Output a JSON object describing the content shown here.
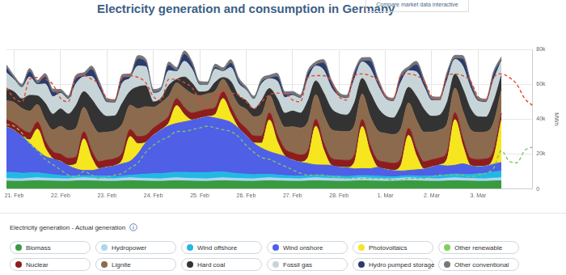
{
  "page": {
    "button": "Compare market data interactive",
    "legend_heading": "Electricity generation - Actual generation"
  },
  "chart_data": {
    "type": "area",
    "title": "Electricity generation and consumption in Germany",
    "y_label": "MWh",
    "stacked": true,
    "grid": true,
    "legend": "bottom",
    "ylim": [
      0,
      80000
    ],
    "yticks": [
      0,
      {
        "value": 20000,
        "label": "20k"
      },
      {
        "value": 40000,
        "label": "40k"
      },
      {
        "value": 60000,
        "label": "60k"
      },
      {
        "value": 80000,
        "label": "80k"
      }
    ],
    "categories": [
      null,
      "21. Feb",
      null,
      null,
      null,
      null,
      null,
      "22. Feb",
      null,
      null,
      null,
      null,
      null,
      "23. Feb",
      null,
      null,
      null,
      null,
      null,
      "24. Feb",
      null,
      null,
      null,
      null,
      null,
      "25. Feb",
      null,
      null,
      null,
      null,
      null,
      "26. Feb",
      null,
      null,
      null,
      null,
      null,
      "27. Feb",
      null,
      null,
      null,
      null,
      null,
      "28. Feb",
      null,
      null,
      null,
      null,
      null,
      "1. Mar",
      null,
      null,
      null,
      null,
      null,
      "2. Mar",
      null,
      null,
      null,
      null,
      null,
      "3. Mar",
      null,
      null,
      null,
      null,
      null,
      null,
      null
    ],
    "series": [
      {
        "name": "Biomass",
        "color": "#3a9a3f",
        "values": [
          4500,
          4400,
          4400,
          4600,
          4700,
          4600,
          4500,
          4400,
          4400,
          4600,
          4700,
          4600,
          4500,
          4400,
          4400,
          4600,
          4700,
          4600,
          4500,
          4400,
          4400,
          4600,
          4700,
          4600,
          4500,
          4400,
          4400,
          4600,
          4700,
          4600,
          4500,
          4400,
          4400,
          4600,
          4700,
          4600,
          4500,
          4400,
          4400,
          4600,
          4700,
          4600,
          4500,
          4400,
          4400,
          4600,
          4700,
          4600,
          4500,
          4400,
          4400,
          4600,
          4700,
          4600,
          4500,
          4400,
          4400,
          4600,
          4700,
          4600,
          4500,
          4400,
          4400,
          4600,
          4700,
          null,
          null,
          null,
          null
        ]
      },
      {
        "name": "Hydropower",
        "color": "#a9d7ef",
        "values": [
          1500,
          1500,
          1400,
          1600,
          1700,
          1600,
          1500,
          1500,
          1400,
          1600,
          1700,
          1600,
          1500,
          1500,
          1400,
          1600,
          1700,
          1600,
          1500,
          1500,
          1400,
          1600,
          1700,
          1600,
          1500,
          1500,
          1400,
          1600,
          1700,
          1600,
          1500,
          1500,
          1400,
          1600,
          1700,
          1600,
          1500,
          1500,
          1400,
          1600,
          1700,
          1600,
          1500,
          1500,
          1400,
          1600,
          1700,
          1600,
          1500,
          1500,
          1400,
          1600,
          1700,
          1600,
          1500,
          1500,
          1400,
          1600,
          1700,
          1600,
          1500,
          1500,
          1400,
          1600,
          1700,
          null,
          null,
          null,
          null
        ]
      },
      {
        "name": "Wind offshore",
        "color": "#22b8e3",
        "values": [
          3500,
          3500,
          3200,
          3000,
          2800,
          2500,
          2200,
          1800,
          1500,
          1300,
          1200,
          1400,
          1500,
          1500,
          1400,
          1300,
          1500,
          2000,
          2500,
          2800,
          3000,
          3000,
          3200,
          3300,
          3400,
          3500,
          3600,
          3500,
          3300,
          3000,
          2800,
          2600,
          2400,
          2200,
          2000,
          1800,
          1700,
          1600,
          1500,
          1400,
          1400,
          1500,
          1500,
          1500,
          1400,
          1300,
          1300,
          1400,
          1400,
          1300,
          1200,
          1100,
          1200,
          1300,
          1400,
          1600,
          1800,
          2000,
          2200,
          2200,
          2400,
          2800,
          3200,
          3500,
          3800,
          null,
          null,
          null,
          null
        ]
      },
      {
        "name": "Wind onshore",
        "color": "#4f5fe6",
        "values": [
          26000,
          24000,
          21000,
          17000,
          13000,
          10000,
          9000,
          8000,
          6000,
          4000,
          3000,
          3000,
          4000,
          5000,
          6000,
          7000,
          8000,
          12000,
          18000,
          22000,
          25000,
          27000,
          28000,
          29000,
          30000,
          31000,
          32000,
          31000,
          30000,
          29000,
          26000,
          22000,
          18000,
          15000,
          13000,
          12000,
          11000,
          9000,
          8000,
          7000,
          6000,
          6000,
          6000,
          5000,
          5000,
          4000,
          4000,
          4000,
          5000,
          4000,
          3500,
          3000,
          3000,
          3500,
          4000,
          5000,
          6000,
          5000,
          5000,
          6000,
          5000,
          4000,
          4000,
          4500,
          5000,
          null,
          null,
          null,
          null
        ]
      },
      {
        "name": "Photovoltaics",
        "color": "#f6e61f",
        "values": [
          0,
          0,
          0,
          1800,
          12000,
          4800,
          0,
          0,
          0,
          2700,
          18000,
          7200,
          0,
          0,
          0,
          2100,
          14000,
          5600,
          0,
          0,
          0,
          1500,
          10000,
          4000,
          0,
          0,
          0,
          1800,
          12000,
          4800,
          0,
          0,
          0,
          2700,
          18000,
          7200,
          0,
          0,
          0,
          3300,
          22000,
          8800,
          0,
          0,
          0,
          3600,
          24000,
          9600,
          0,
          0,
          0,
          3000,
          20000,
          8000,
          0,
          0,
          0,
          3900,
          26000,
          10400,
          0,
          0,
          0,
          3600,
          24000,
          null,
          null,
          null,
          null
        ]
      },
      {
        "name": "Other renewable",
        "color": "#7fcf5b",
        "values": [
          200,
          200,
          200,
          200,
          200,
          200,
          200,
          200,
          200,
          200,
          200,
          200,
          200,
          200,
          200,
          200,
          200,
          200,
          200,
          200,
          200,
          200,
          200,
          200,
          200,
          200,
          200,
          200,
          200,
          200,
          200,
          200,
          200,
          200,
          200,
          200,
          200,
          200,
          200,
          200,
          200,
          200,
          200,
          200,
          200,
          200,
          200,
          200,
          200,
          200,
          200,
          200,
          200,
          200,
          200,
          200,
          200,
          200,
          200,
          200,
          200,
          200,
          200,
          200,
          200,
          null,
          null,
          null,
          null
        ]
      },
      {
        "name": "Nuclear",
        "color": "#8e1c1c",
        "values": [
          4000,
          4000,
          4000,
          4000,
          4000,
          4000,
          4000,
          4000,
          4000,
          4000,
          4000,
          4000,
          4000,
          4000,
          4000,
          4000,
          4000,
          4000,
          4000,
          4000,
          4000,
          4000,
          4000,
          4000,
          4000,
          4000,
          4000,
          4000,
          4000,
          4000,
          4000,
          4000,
          4000,
          4000,
          4000,
          4000,
          4000,
          4000,
          4000,
          4000,
          4000,
          4000,
          4000,
          4000,
          4000,
          4000,
          4000,
          4000,
          4000,
          4000,
          4000,
          4000,
          4000,
          4000,
          4000,
          4000,
          4000,
          4000,
          4000,
          4000,
          4000,
          4000,
          4000,
          4000,
          4000,
          null,
          null,
          null,
          null
        ]
      },
      {
        "name": "Lignite",
        "color": "#8b6a4e",
        "values": [
          11000,
          12000,
          12000,
          12500,
          10000,
          12000,
          12500,
          16000,
          16000,
          16500,
          14000,
          16000,
          16500,
          16000,
          16000,
          16500,
          14000,
          16000,
          16500,
          12000,
          11500,
          11500,
          9000,
          11000,
          11000,
          9000,
          9000,
          9500,
          7000,
          9000,
          9500,
          11000,
          11000,
          12500,
          10000,
          12000,
          12500,
          15000,
          15500,
          16500,
          14000,
          16000,
          16500,
          16500,
          16500,
          17000,
          14500,
          16500,
          17000,
          16500,
          16500,
          17000,
          14500,
          16500,
          17000,
          16000,
          16000,
          16500,
          14000,
          16000,
          16500,
          15500,
          15500,
          16000,
          13500,
          null,
          null,
          null,
          null
        ]
      },
      {
        "name": "Hard coal",
        "color": "#333333",
        "values": [
          7000,
          6000,
          5500,
          9000,
          5000,
          9500,
          9000,
          10000,
          9500,
          13000,
          9000,
          13500,
          13000,
          9000,
          8500,
          12000,
          8000,
          12500,
          12000,
          3000,
          2500,
          6000,
          2000,
          6500,
          6000,
          2000,
          1500,
          5000,
          1000,
          5500,
          5000,
          5000,
          4500,
          8000,
          4000,
          8500,
          8000,
          9000,
          8500,
          12000,
          8000,
          12500,
          12000,
          10000,
          9500,
          13000,
          9000,
          13500,
          13000,
          10000,
          9500,
          13000,
          9000,
          13500,
          13000,
          9000,
          8500,
          12000,
          8000,
          12500,
          12000,
          9000,
          8500,
          12000,
          8000,
          null,
          null,
          null,
          null
        ]
      },
      {
        "name": "Fossil gas",
        "color": "#c7d5d8",
        "values": [
          9000,
          7000,
          6500,
          10500,
          6500,
          11000,
          10000,
          9000,
          8500,
          12500,
          8500,
          13000,
          12000,
          8000,
          7500,
          11500,
          7500,
          12000,
          11000,
          5000,
          4500,
          8500,
          4500,
          9000,
          8000,
          4000,
          3500,
          7500,
          3500,
          8000,
          7000,
          6000,
          5500,
          9500,
          5500,
          10000,
          9000,
          9000,
          8500,
          12500,
          8500,
          13000,
          12000,
          10000,
          9500,
          13500,
          9500,
          14000,
          13000,
          10000,
          9500,
          13500,
          9500,
          14000,
          13000,
          9000,
          8500,
          12500,
          8500,
          13000,
          12000,
          9000,
          8500,
          12500,
          8500,
          null,
          null,
          null,
          null
        ]
      },
      {
        "name": "Hydro pumped storage",
        "color": "#2b3b6c",
        "values": [
          2500,
          500,
          300,
          3000,
          500,
          4000,
          2500,
          500,
          300,
          3000,
          500,
          4000,
          2500,
          500,
          300,
          3000,
          500,
          4000,
          2500,
          500,
          300,
          3000,
          500,
          4000,
          2500,
          300,
          200,
          1000,
          200,
          2500,
          1500,
          300,
          200,
          1000,
          200,
          2500,
          1500,
          500,
          300,
          3000,
          500,
          4000,
          2500,
          500,
          300,
          3000,
          500,
          4000,
          2500,
          500,
          300,
          3000,
          500,
          4000,
          2500,
          500,
          300,
          3000,
          500,
          4000,
          2500,
          500,
          300,
          3000,
          500,
          null,
          null,
          null,
          null
        ]
      },
      {
        "name": "Other conventional",
        "color": "#777777",
        "values": [
          1900,
          1700,
          1600,
          1900,
          1900,
          2000,
          1900,
          1700,
          1600,
          1900,
          1900,
          2000,
          1900,
          1700,
          1600,
          1900,
          1900,
          2000,
          1900,
          1700,
          1600,
          1900,
          1900,
          2000,
          1900,
          1700,
          1600,
          1900,
          1900,
          2000,
          1900,
          1700,
          1600,
          1900,
          1900,
          2000,
          1900,
          1700,
          1600,
          1900,
          1900,
          2000,
          1900,
          1700,
          1600,
          1900,
          1900,
          2000,
          1900,
          1700,
          1600,
          1900,
          1900,
          2000,
          1900,
          1700,
          1600,
          1900,
          1900,
          2000,
          1900,
          1700,
          1600,
          1900,
          1900,
          null,
          null,
          null,
          null
        ]
      },
      {
        "type": "line",
        "line_style": "dashed",
        "color": "#e8452c",
        "values": [
          58000,
          52000,
          50000,
          63000,
          64000,
          63000,
          60000,
          52000,
          50000,
          64000,
          65000,
          63000,
          60000,
          52000,
          51000,
          64000,
          65000,
          64000,
          61000,
          53000,
          51000,
          63000,
          63000,
          61000,
          58000,
          51000,
          47000,
          53000,
          56000,
          55000,
          54000,
          50000,
          46000,
          50000,
          54000,
          55000,
          55000,
          51000,
          50000,
          64000,
          65000,
          65000,
          62000,
          53000,
          51000,
          65000,
          66000,
          65000,
          62000,
          53000,
          51000,
          65000,
          66000,
          65000,
          62000,
          53000,
          51000,
          65000,
          66000,
          65000,
          62000,
          53000,
          51000,
          64000,
          66000,
          64000,
          60000,
          52000,
          48000
        ]
      },
      {
        "type": "line",
        "line_style": "dashed",
        "color": "#7cc26a",
        "values": [
          37000,
          36000,
          32000,
          26000,
          22000,
          17000,
          14000,
          11000,
          8000,
          7000,
          10000,
          8000,
          6000,
          7000,
          8000,
          9000,
          12000,
          15000,
          21000,
          25000,
          28000,
          30000,
          33000,
          33000,
          34000,
          35000,
          36000,
          35000,
          34000,
          33000,
          30000,
          25000,
          21000,
          18000,
          17000,
          15000,
          13000,
          11000,
          9000,
          8000,
          8000,
          8000,
          7000,
          7000,
          6000,
          6000,
          6000,
          6000,
          6000,
          6000,
          5000,
          5000,
          6000,
          6000,
          6000,
          7000,
          8000,
          8000,
          8000,
          8000,
          7000,
          8000,
          9000,
          12000,
          22000,
          16000,
          15000,
          22000,
          24000
        ]
      }
    ]
  }
}
